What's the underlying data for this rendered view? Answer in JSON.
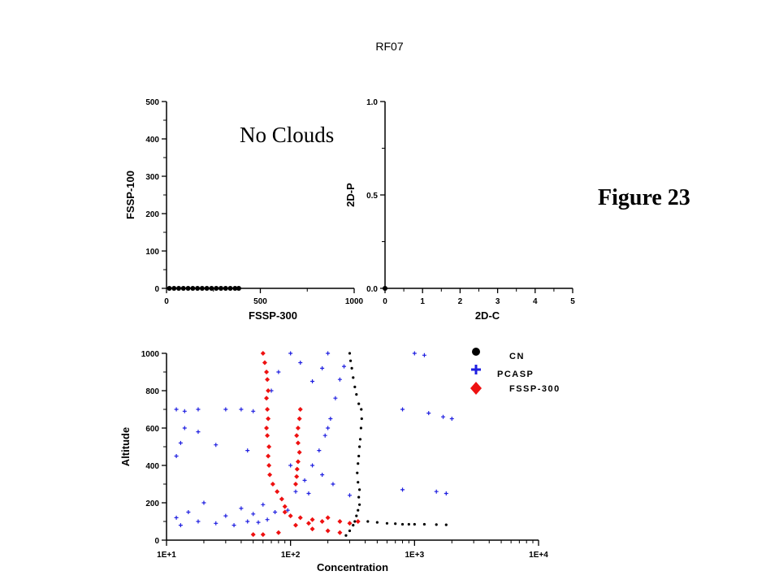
{
  "title": "RF07",
  "figure_label": "Figure 23",
  "colors": {
    "cn": "#000000",
    "pcasp": "#1f1fe0",
    "fssp300": "#ee1111",
    "axis": "#000000"
  },
  "chart_data": [
    {
      "type": "scatter",
      "xlabel": "FSSP-300",
      "ylabel": "FSSP-100",
      "xlim": [
        0,
        1000
      ],
      "ylim": [
        0,
        500
      ],
      "xticks": [
        "0",
        "500",
        "1000"
      ],
      "yticks": [
        "0",
        "100",
        "200",
        "300",
        "400",
        "500"
      ],
      "annotation": "No Clouds",
      "series": [
        {
          "values": [
            [
              15,
              0
            ],
            [
              40,
              0
            ],
            [
              65,
              0
            ],
            [
              90,
              0
            ],
            [
              115,
              0
            ],
            [
              140,
              0
            ],
            [
              165,
              0
            ],
            [
              190,
              0
            ],
            [
              215,
              0
            ],
            [
              240,
              0
            ],
            [
              265,
              0
            ],
            [
              290,
              0
            ],
            [
              315,
              0
            ],
            [
              340,
              0
            ],
            [
              365,
              0
            ],
            [
              385,
              0
            ]
          ]
        }
      ]
    },
    {
      "type": "scatter",
      "xlabel": "2D-C",
      "ylabel": "2D-P",
      "xlim": [
        0,
        5
      ],
      "ylim": [
        0,
        1
      ],
      "xticks": [
        "0",
        "1",
        "2",
        "3",
        "4",
        "5"
      ],
      "yticks": [
        "0.0",
        "0.5",
        "1.0"
      ],
      "series": [
        {
          "values": [
            [
              0,
              0
            ]
          ]
        }
      ]
    },
    {
      "type": "scatter",
      "xlabel": "Concentration",
      "ylabel": "Altitude",
      "x_scale": "log",
      "xlim": [
        10,
        10000
      ],
      "ylim": [
        0,
        1000
      ],
      "xticks": [
        "1E+1",
        "1E+2",
        "1E+3",
        "1E+4"
      ],
      "yticks": [
        "0",
        "200",
        "400",
        "600",
        "800",
        "1000"
      ],
      "legend": {
        "position": "top-right",
        "entries": [
          "CN",
          "PCASP",
          "FSSP-300"
        ]
      },
      "series": [
        {
          "name": "CN",
          "marker": "dot",
          "values": [
            [
              280,
              25
            ],
            [
              300,
              50
            ],
            [
              320,
              80
            ],
            [
              330,
              100
            ],
            [
              340,
              130
            ],
            [
              350,
              160
            ],
            [
              360,
              190
            ],
            [
              355,
              230
            ],
            [
              360,
              270
            ],
            [
              350,
              310
            ],
            [
              345,
              360
            ],
            [
              350,
              410
            ],
            [
              355,
              450
            ],
            [
              360,
              500
            ],
            [
              365,
              540
            ],
            [
              370,
              600
            ],
            [
              375,
              650
            ],
            [
              372,
              700
            ],
            [
              355,
              730
            ],
            [
              340,
              780
            ],
            [
              330,
              820
            ],
            [
              320,
              870
            ],
            [
              312,
              920
            ],
            [
              305,
              960
            ],
            [
              300,
              1000
            ],
            [
              420,
              100
            ],
            [
              500,
              95
            ],
            [
              600,
              90
            ],
            [
              700,
              88
            ],
            [
              800,
              85
            ],
            [
              900,
              85
            ],
            [
              1000,
              85
            ],
            [
              1200,
              85
            ],
            [
              1500,
              83
            ],
            [
              1800,
              82
            ]
          ]
        },
        {
          "name": "PCASP",
          "marker": "cross",
          "values": [
            [
              12,
              120
            ],
            [
              13,
              80
            ],
            [
              15,
              150
            ],
            [
              18,
              100
            ],
            [
              20,
              200
            ],
            [
              25,
              90
            ],
            [
              30,
              130
            ],
            [
              35,
              80
            ],
            [
              40,
              170
            ],
            [
              45,
              100
            ],
            [
              50,
              140
            ],
            [
              55,
              95
            ],
            [
              60,
              190
            ],
            [
              65,
              110
            ],
            [
              75,
              150
            ],
            [
              85,
              220
            ],
            [
              95,
              160
            ],
            [
              110,
              260
            ],
            [
              130,
              320
            ],
            [
              150,
              400
            ],
            [
              170,
              480
            ],
            [
              190,
              560
            ],
            [
              210,
              650
            ],
            [
              230,
              760
            ],
            [
              250,
              860
            ],
            [
              270,
              930
            ],
            [
              12,
              700
            ],
            [
              14,
              690
            ],
            [
              18,
              700
            ],
            [
              30,
              700
            ],
            [
              40,
              700
            ],
            [
              50,
              690
            ],
            [
              14,
              600
            ],
            [
              13,
              520
            ],
            [
              12,
              450
            ],
            [
              18,
              580
            ],
            [
              25,
              510
            ],
            [
              45,
              480
            ],
            [
              70,
              800
            ],
            [
              80,
              900
            ],
            [
              100,
              1000
            ],
            [
              120,
              950
            ],
            [
              150,
              850
            ],
            [
              180,
              920
            ],
            [
              200,
              1000
            ],
            [
              1000,
              1000
            ],
            [
              1200,
              990
            ],
            [
              800,
              700
            ],
            [
              1300,
              680
            ],
            [
              1700,
              660
            ],
            [
              2000,
              650
            ],
            [
              800,
              270
            ],
            [
              1500,
              260
            ],
            [
              1800,
              250
            ],
            [
              300,
              240
            ],
            [
              220,
              300
            ],
            [
              180,
              350
            ],
            [
              140,
              250
            ],
            [
              100,
              400
            ],
            [
              200,
              600
            ]
          ]
        },
        {
          "name": "FSSP-300",
          "marker": "diamond",
          "values": [
            [
              60,
              1000
            ],
            [
              62,
              950
            ],
            [
              64,
              900
            ],
            [
              65,
              860
            ],
            [
              66,
              800
            ],
            [
              64,
              760
            ],
            [
              65,
              700
            ],
            [
              66,
              650
            ],
            [
              64,
              600
            ],
            [
              65,
              560
            ],
            [
              67,
              500
            ],
            [
              66,
              450
            ],
            [
              67,
              400
            ],
            [
              68,
              350
            ],
            [
              72,
              300
            ],
            [
              78,
              260
            ],
            [
              85,
              220
            ],
            [
              90,
              180
            ],
            [
              120,
              700
            ],
            [
              118,
              650
            ],
            [
              115,
              600
            ],
            [
              112,
              560
            ],
            [
              115,
              520
            ],
            [
              118,
              470
            ],
            [
              115,
              420
            ],
            [
              113,
              380
            ],
            [
              112,
              340
            ],
            [
              110,
              300
            ],
            [
              90,
              150
            ],
            [
              100,
              130
            ],
            [
              120,
              120
            ],
            [
              150,
              110
            ],
            [
              180,
              100
            ],
            [
              200,
              120
            ],
            [
              250,
              100
            ],
            [
              300,
              90
            ],
            [
              350,
              100
            ],
            [
              110,
              80
            ],
            [
              150,
              60
            ],
            [
              200,
              50
            ],
            [
              250,
              40
            ],
            [
              80,
              40
            ],
            [
              60,
              30
            ],
            [
              50,
              30
            ],
            [
              140,
              90
            ]
          ]
        }
      ]
    }
  ]
}
